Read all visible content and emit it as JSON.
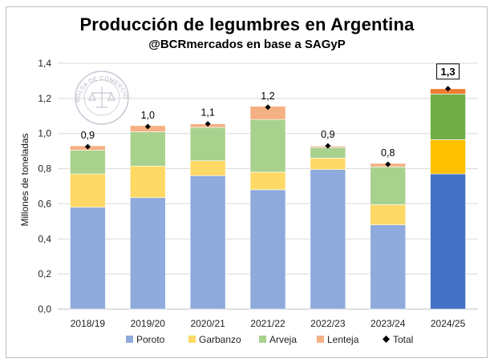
{
  "header": {
    "title": "Producción de legumbres en Argentina",
    "subtitle": "@BCRmercados en base a SAGyP"
  },
  "watermark": {
    "text": "BOLSA DE COMERCIO DE ROSARIO"
  },
  "colors": {
    "poroto": "#8faadc",
    "garbanzo": "#ffd966",
    "arveja": "#a9d18e",
    "lenteja": "#f4b183",
    "poroto_highlight": "#4472c4",
    "garbanzo_highlight": "#ffc000",
    "arveja_highlight": "#70ad47",
    "lenteja_highlight": "#ed7d31",
    "total_marker": "#000000",
    "grid": "#d9d9d9"
  },
  "chart_data": {
    "type": "bar",
    "stacked": true,
    "title": "Producción de legumbres en Argentina",
    "subtitle": "@BCRmercados en base a SAGyP",
    "xlabel": "",
    "ylabel": "Millones de toneladas",
    "ylim": [
      0,
      1.4
    ],
    "yticks": [
      "0,0",
      "0,2",
      "0,4",
      "0,6",
      "0,8",
      "1,0",
      "1,2",
      "1,4"
    ],
    "ytick_values": [
      0,
      0.2,
      0.4,
      0.6,
      0.8,
      1.0,
      1.2,
      1.4
    ],
    "grid": true,
    "legend_position": "bottom",
    "categories": [
      "2018/19",
      "2019/20",
      "2020/21",
      "2021/22",
      "2022/23",
      "2023/24",
      "2024/25"
    ],
    "series": [
      {
        "name": "Poroto",
        "values": [
          0.58,
          0.635,
          0.76,
          0.68,
          0.795,
          0.48,
          0.77
        ]
      },
      {
        "name": "Garbanzo",
        "values": [
          0.19,
          0.18,
          0.085,
          0.1,
          0.065,
          0.115,
          0.195
        ]
      },
      {
        "name": "Arveja",
        "values": [
          0.135,
          0.195,
          0.19,
          0.3,
          0.06,
          0.215,
          0.26
        ]
      },
      {
        "name": "Lenteja",
        "values": [
          0.025,
          0.035,
          0.02,
          0.075,
          0.008,
          0.02,
          0.03
        ]
      }
    ],
    "total_series_name": "Total",
    "totals": [
      0.925,
      1.04,
      1.055,
      1.15,
      0.93,
      0.825,
      1.255
    ],
    "total_labels": [
      "0,9",
      "1,0",
      "1,1",
      "1,2",
      "0,9",
      "0,8",
      "1,3"
    ],
    "highlighted_category": "2024/25"
  }
}
